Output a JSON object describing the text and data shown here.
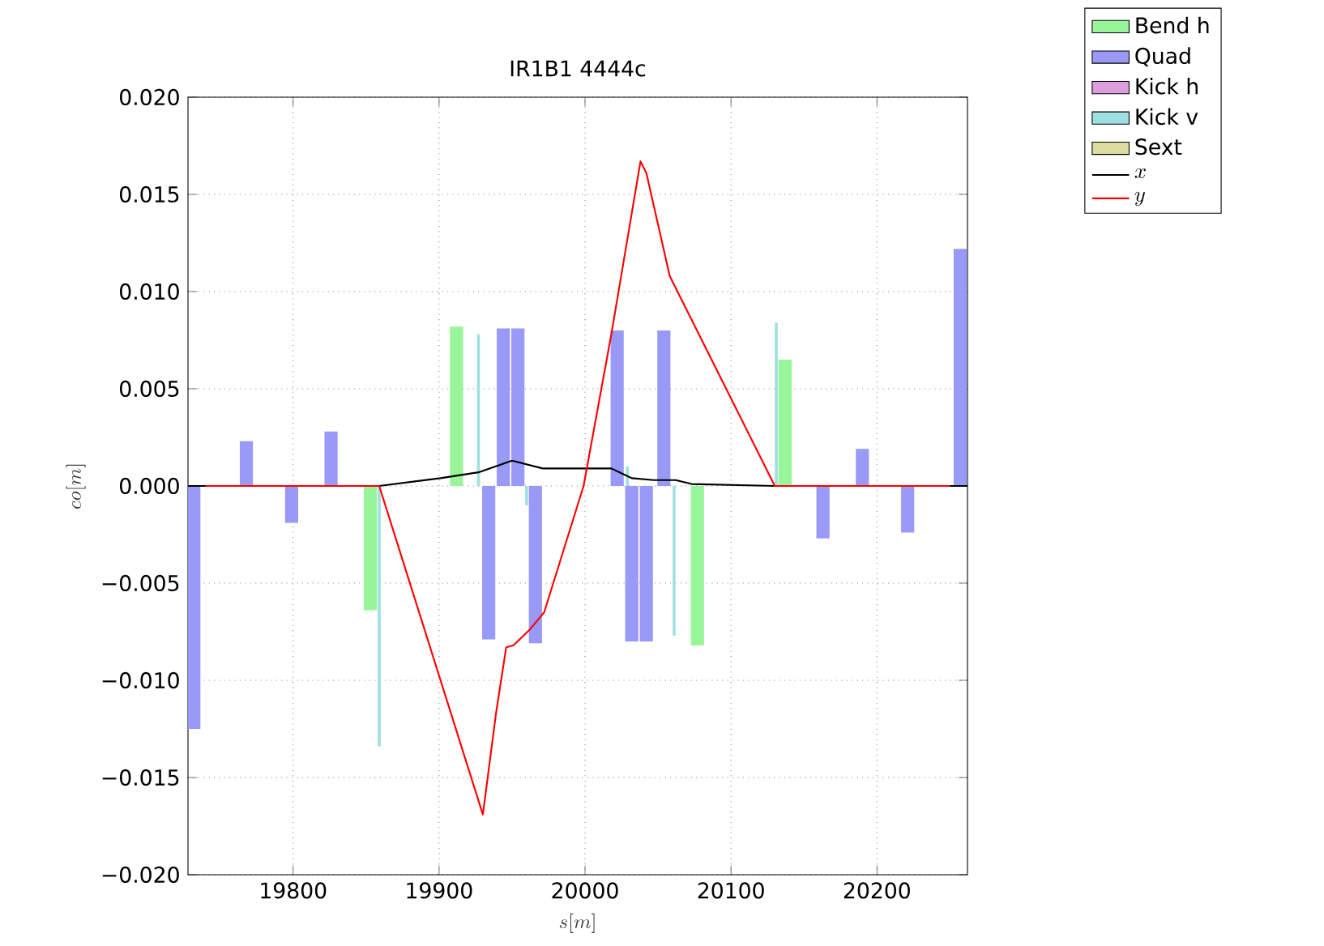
{
  "chart_data": {
    "type": "bar",
    "title": "IR1B1 4444c",
    "xlabel": "s[m]",
    "ylabel": "co[m]",
    "xlim": [
      19728,
      20262
    ],
    "ylim": [
      -0.02,
      0.02
    ],
    "xticks": [
      19800,
      19900,
      20000,
      20100,
      20200
    ],
    "yticks": [
      {
        "value": -0.02,
        "label": "−0.020"
      },
      {
        "value": -0.015,
        "label": "−0.015"
      },
      {
        "value": -0.01,
        "label": "−0.010"
      },
      {
        "value": -0.005,
        "label": "−0.005"
      },
      {
        "value": 0,
        "label": "0.000"
      },
      {
        "value": 0.005,
        "label": "0.005"
      },
      {
        "value": 0.01,
        "label": "0.010"
      },
      {
        "value": 0.015,
        "label": "0.015"
      },
      {
        "value": 0.02,
        "label": "0.020"
      }
    ],
    "grid": true,
    "legend": "top right",
    "series": [
      {
        "name": "Bend h",
        "color": "#99f599",
        "x": [
          19853,
          19912,
          20077,
          20137
        ],
        "values": [
          -0.0064,
          0.0082,
          -0.0082,
          0.0065
        ]
      },
      {
        "name": "Quad",
        "color": "#9999f8",
        "x": [
          19732,
          19768,
          19799,
          19826,
          19934,
          19944,
          19954,
          19966,
          20022,
          20032,
          20042,
          20054,
          20163,
          20190,
          20221,
          20257
        ],
        "values": [
          -0.0125,
          0.0023,
          -0.0019,
          0.0028,
          -0.0079,
          0.0081,
          0.0081,
          -0.0081,
          0.008,
          -0.008,
          -0.008,
          0.008,
          -0.0027,
          0.0019,
          -0.0024,
          0.0122
        ]
      },
      {
        "name": "Kick h",
        "color": "#dc9edc"
      },
      {
        "name": "Kick v",
        "color": "#9ee0e0",
        "x": [
          19859,
          19927,
          19960,
          20029,
          20061,
          20131
        ],
        "values": [
          -0.0134,
          0.0078,
          -0.001,
          0.001,
          -0.0077,
          0.0084
        ]
      },
      {
        "name": "Sext",
        "color": "#dcdca0"
      },
      {
        "name": "x",
        "type": "line",
        "color": "#000000",
        "x": [
          19728,
          19859,
          19901,
          19927,
          19950,
          19971,
          20018,
          20032,
          20047,
          20062,
          20073,
          20130,
          20262
        ],
        "values": [
          0,
          0,
          0.0004,
          0.0007,
          0.0013,
          0.0009,
          0.0009,
          0.0004,
          0.0003,
          0.0003,
          0.0001,
          0,
          0
        ]
      },
      {
        "name": "y",
        "type": "line",
        "color": "#ff0000",
        "x": [
          19740,
          19859,
          19930,
          19939,
          19946,
          19951,
          19962,
          19972,
          19999,
          20018,
          20038,
          20042,
          20058,
          20130,
          20250
        ],
        "values": [
          0,
          0,
          -0.0169,
          -0.0117,
          -0.0083,
          -0.0082,
          -0.0074,
          -0.0065,
          0,
          0.0078,
          0.0167,
          0.0161,
          0.0108,
          0,
          0
        ]
      }
    ]
  }
}
